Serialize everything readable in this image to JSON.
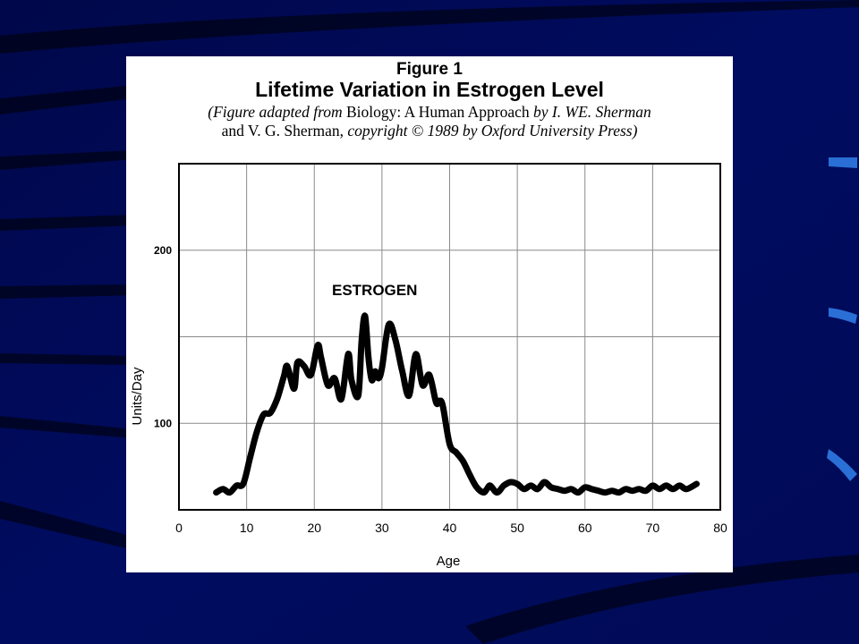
{
  "slide": {
    "background": "#000a55",
    "accent": "#2a6fd6"
  },
  "figure": {
    "number": "Figure 1",
    "title": "Lifetime Variation in Estrogen Level",
    "caption_line1_a": "(Figure adapted from ",
    "caption_line1_b": "Biology: A Human Approach",
    "caption_line1_c": " by I. WE. Sherman",
    "caption_line2_a": "and V. G. Sherman, ",
    "caption_line2_b": "copyright © 1989 by Oxford University Press)"
  },
  "chart_data": {
    "type": "line",
    "xlabel": "Age",
    "ylabel": "Units/Day",
    "xlim": [
      0,
      80
    ],
    "ylim": [
      50,
      250
    ],
    "x_ticks": [
      "0",
      "10",
      "20",
      "30",
      "40",
      "50",
      "60",
      "70",
      "80"
    ],
    "y_ticks": [
      "100",
      "200"
    ],
    "grid": true,
    "series": [
      {
        "name": "ESTROGEN",
        "color": "#000000",
        "x": [
          5.5,
          6.5,
          7.5,
          8.5,
          9.5,
          10.5,
          11.5,
          12.5,
          13.5,
          14.5,
          15.5,
          16,
          17,
          17.5,
          18.5,
          19.5,
          20.5,
          21,
          22,
          23,
          24,
          25,
          25.5,
          26.5,
          27,
          27.5,
          28,
          28.5,
          29,
          29.5,
          30,
          31,
          32,
          33,
          34,
          35,
          36,
          37,
          38,
          38.5,
          39,
          40,
          41,
          42,
          43,
          44,
          45,
          45.5,
          46,
          47,
          48,
          49,
          50,
          51,
          52,
          53,
          54,
          55,
          56,
          57,
          58,
          59,
          60,
          61,
          62,
          63,
          64,
          65,
          66,
          67,
          68,
          69,
          70,
          71,
          72,
          73,
          74,
          75,
          76.5
        ],
        "values": [
          60,
          62,
          60,
          64,
          65,
          80,
          95,
          105,
          106,
          114,
          127,
          133,
          120,
          135,
          133,
          128,
          145,
          138,
          122,
          126,
          114,
          140,
          125,
          116,
          148,
          162,
          138,
          125,
          130,
          126,
          132,
          157,
          148,
          130,
          116,
          140,
          122,
          128,
          112,
          113,
          110,
          88,
          83,
          78,
          70,
          63,
          60,
          62,
          64,
          60,
          64,
          66,
          65,
          62,
          64,
          62,
          66,
          63,
          62,
          61,
          62,
          60,
          63,
          62,
          61,
          60,
          61,
          60,
          62,
          61,
          62,
          61,
          64,
          62,
          64,
          62,
          64,
          62,
          65
        ]
      }
    ]
  }
}
